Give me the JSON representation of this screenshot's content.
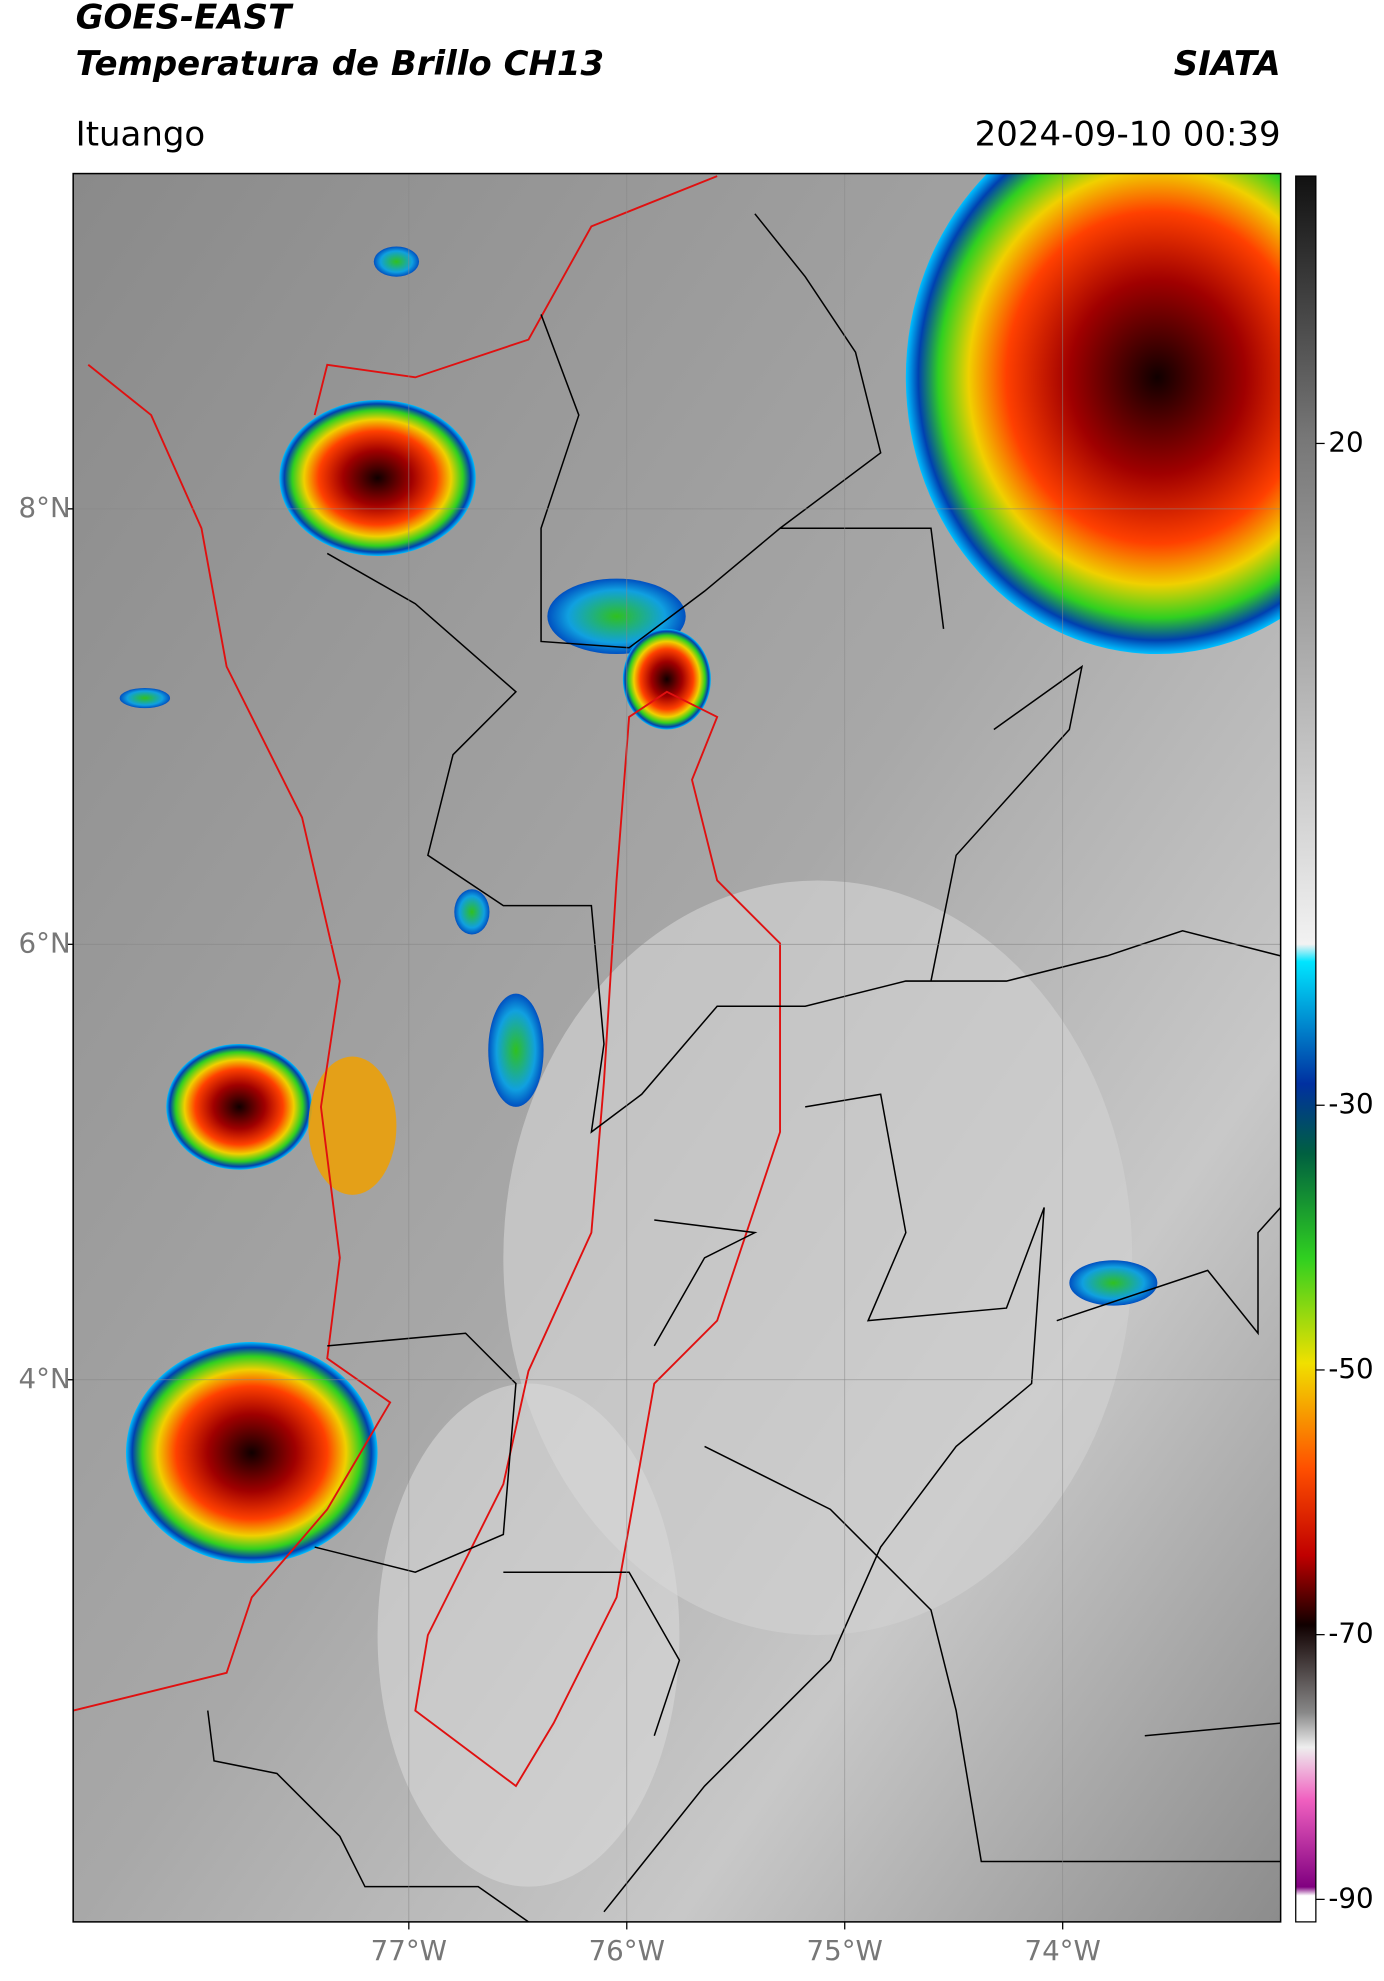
{
  "header": {
    "title": "GOES-EAST",
    "subtitle": "Temperatura de Brillo CH13",
    "brand": "SIATA",
    "location": "Ituango",
    "timestamp": "2024-09-10 00:39"
  },
  "map": {
    "xlim": [
      -78.54,
      -73.0
    ],
    "ylim": [
      1.51,
      9.54
    ],
    "xticks": [
      {
        "value": -77,
        "label": "77°W"
      },
      {
        "value": -76,
        "label": "76°W"
      },
      {
        "value": -75,
        "label": "75°W"
      },
      {
        "value": -74,
        "label": "74°W"
      }
    ],
    "yticks": [
      {
        "value": 8,
        "label": "8°N"
      },
      {
        "value": 6,
        "label": "6°N"
      },
      {
        "value": 4,
        "label": "4°N"
      }
    ],
    "grid": true
  },
  "colorbar": {
    "lim": [
      -91.7,
      40.2
    ],
    "ticks": [
      20,
      -30,
      -50,
      -70,
      -90
    ]
  }
}
